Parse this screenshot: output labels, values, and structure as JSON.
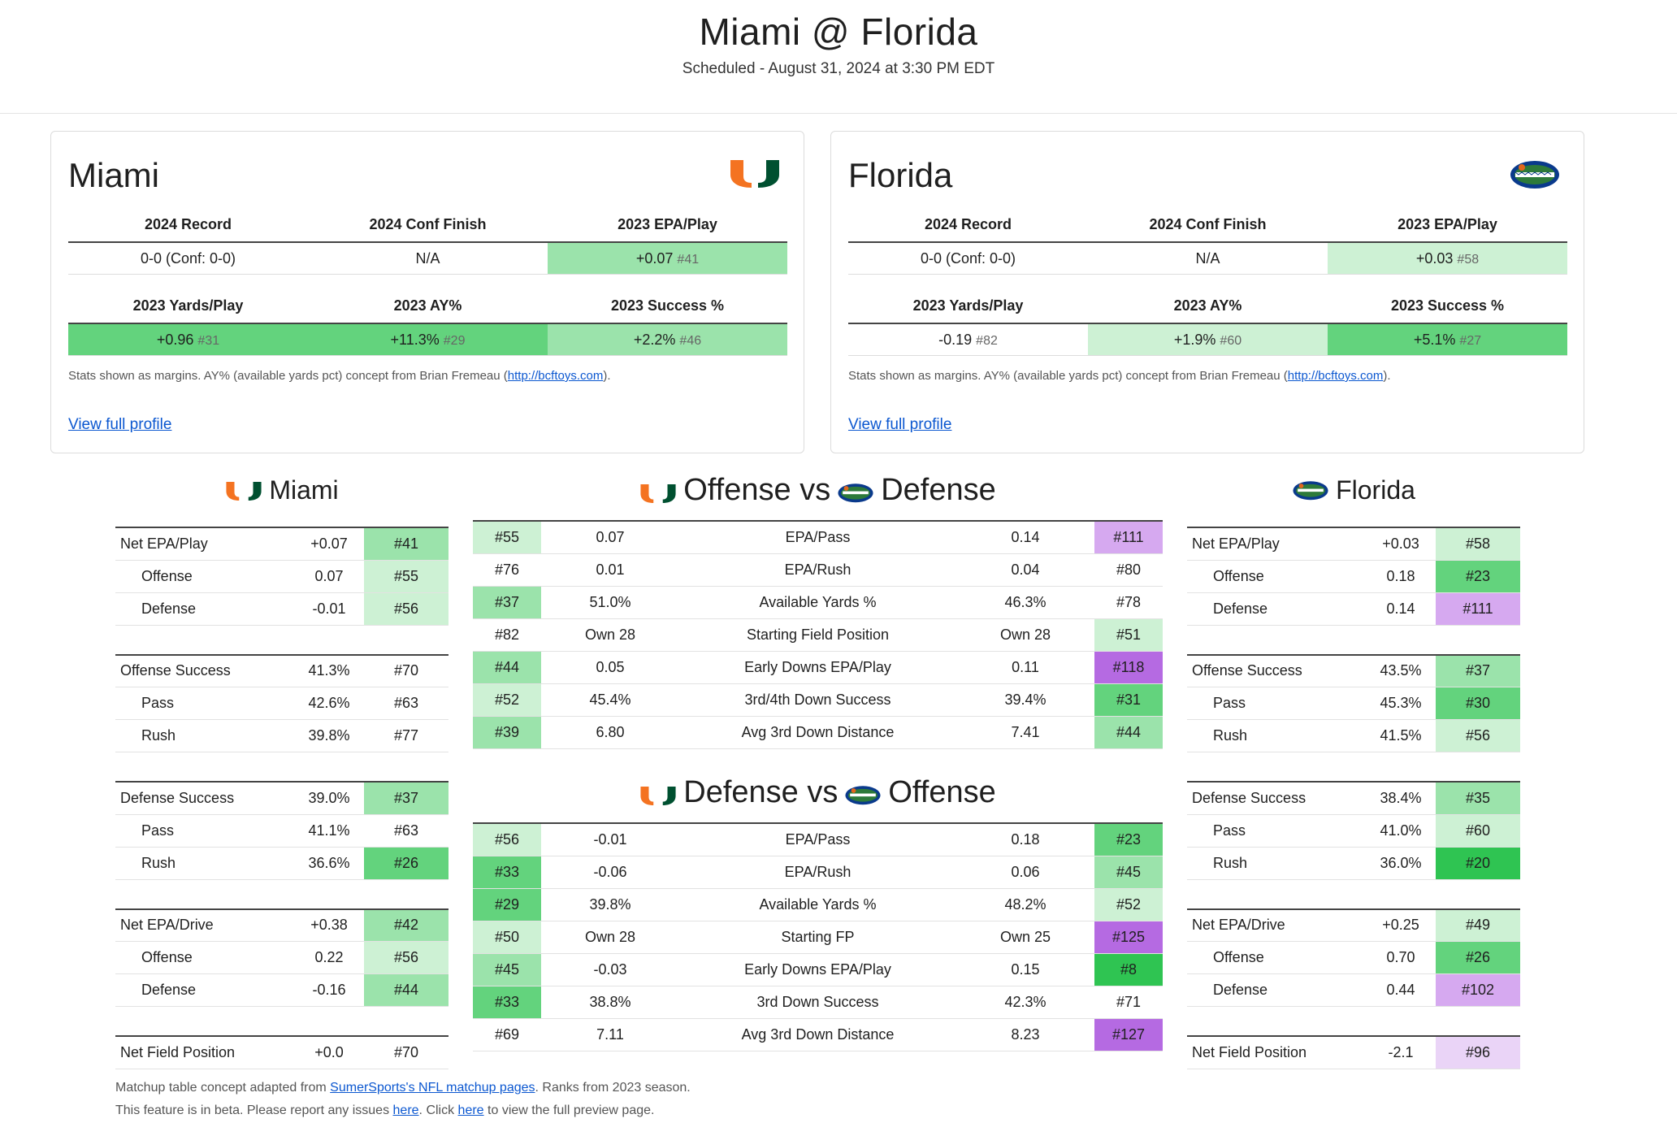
{
  "header": {
    "title": "Miami @ Florida",
    "subtitle": "Scheduled - August 31, 2024 at 3:30 PM EDT"
  },
  "colors": {
    "green_dark": "#2fc452",
    "green_mid": "#63d37d",
    "green_light": "#9be3ab",
    "green_pale": "#cdf1d4",
    "purple_dark": "#b56ae2",
    "purple_mid": "#d6a9f0",
    "purple_pale": "#ead4f7",
    "miami_orange": "#f47321",
    "miami_green": "#005030",
    "gator_blue": "#0a3a8c",
    "gator_orange": "#e2661b"
  },
  "cards": [
    {
      "team": "Miami",
      "logo": "miami-u-logo",
      "labels1": [
        "2024 Record",
        "2024 Conf Finish",
        "2023 EPA/Play"
      ],
      "record": "0-0 (Conf: 0-0)",
      "conf_finish": "N/A",
      "epa": "+0.07",
      "epa_rank": "#41",
      "labels2": [
        "2023 Yards/Play",
        "2023 AY%",
        "2023 Success %"
      ],
      "ypp": "+0.96",
      "ypp_rank": "#31",
      "ay": "+11.3%",
      "ay_rank": "#29",
      "succ": "+2.2%",
      "succ_rank": "#46",
      "note_prefix": "Stats shown as margins. AY% (available yards pct) concept from Brian Fremeau (",
      "note_link": "http://bcftoys.com",
      "note_suffix": ").",
      "profile_link": "View full profile"
    },
    {
      "team": "Florida",
      "logo": "gator-logo",
      "labels1": [
        "2024 Record",
        "2024 Conf Finish",
        "2023 EPA/Play"
      ],
      "record": "0-0 (Conf: 0-0)",
      "conf_finish": "N/A",
      "epa": "+0.03",
      "epa_rank": "#58",
      "labels2": [
        "2023 Yards/Play",
        "2023 AY%",
        "2023 Success %"
      ],
      "ypp": "-0.19",
      "ypp_rank": "#82",
      "ay": "+1.9%",
      "ay_rank": "#60",
      "succ": "+5.1%",
      "succ_rank": "#27",
      "note_prefix": "Stats shown as margins. AY% (available yards pct) concept from Brian Fremeau (",
      "note_link": "http://bcftoys.com",
      "note_suffix": ").",
      "profile_link": "View full profile"
    }
  ],
  "side_left": {
    "title": "Miami",
    "groups": [
      [
        [
          "Net EPA/Play",
          "+0.07",
          "#41"
        ],
        [
          "Offense",
          "0.07",
          "#55"
        ],
        [
          "Defense",
          "-0.01",
          "#56"
        ]
      ],
      [
        [
          "Offense Success",
          "41.3%",
          "#70"
        ],
        [
          "Pass",
          "42.6%",
          "#63"
        ],
        [
          "Rush",
          "39.8%",
          "#77"
        ]
      ],
      [
        [
          "Defense Success",
          "39.0%",
          "#37"
        ],
        [
          "Pass",
          "41.1%",
          "#63"
        ],
        [
          "Rush",
          "36.6%",
          "#26"
        ]
      ],
      [
        [
          "Net EPA/Drive",
          "+0.38",
          "#42"
        ],
        [
          "Offense",
          "0.22",
          "#56"
        ],
        [
          "Defense",
          "-0.16",
          "#44"
        ]
      ],
      [
        [
          "Net Field Position",
          "+0.0",
          "#70"
        ]
      ]
    ]
  },
  "side_right": {
    "title": "Florida",
    "groups": [
      [
        [
          "Net EPA/Play",
          "+0.03",
          "#58"
        ],
        [
          "Offense",
          "0.18",
          "#23"
        ],
        [
          "Defense",
          "0.14",
          "#111"
        ]
      ],
      [
        [
          "Offense Success",
          "43.5%",
          "#37"
        ],
        [
          "Pass",
          "45.3%",
          "#30"
        ],
        [
          "Rush",
          "41.5%",
          "#56"
        ]
      ],
      [
        [
          "Defense Success",
          "38.4%",
          "#35"
        ],
        [
          "Pass",
          "41.0%",
          "#60"
        ],
        [
          "Rush",
          "36.0%",
          "#20"
        ]
      ],
      [
        [
          "Net EPA/Drive",
          "+0.25",
          "#49"
        ],
        [
          "Offense",
          "0.70",
          "#26"
        ],
        [
          "Defense",
          "0.44",
          "#102"
        ]
      ],
      [
        [
          "Net Field Position",
          "-2.1",
          "#96"
        ]
      ]
    ]
  },
  "offense_vs": {
    "title_a": "Offense vs",
    "title_b": "Defense",
    "rows": [
      [
        "#55",
        "0.07",
        "EPA/Pass",
        "0.14",
        "#111"
      ],
      [
        "#76",
        "0.01",
        "EPA/Rush",
        "0.04",
        "#80"
      ],
      [
        "#37",
        "51.0%",
        "Available Yards %",
        "46.3%",
        "#78"
      ],
      [
        "#82",
        "Own 28",
        "Starting Field Position",
        "Own 28",
        "#51"
      ],
      [
        "#44",
        "0.05",
        "Early Downs EPA/Play",
        "0.11",
        "#118"
      ],
      [
        "#52",
        "45.4%",
        "3rd/4th Down Success",
        "39.4%",
        "#31"
      ],
      [
        "#39",
        "6.80",
        "Avg 3rd Down Distance",
        "7.41",
        "#44"
      ]
    ]
  },
  "defense_vs": {
    "title_a": "Defense vs",
    "title_b": "Offense",
    "rows": [
      [
        "#56",
        "-0.01",
        "EPA/Pass",
        "0.18",
        "#23"
      ],
      [
        "#33",
        "-0.06",
        "EPA/Rush",
        "0.06",
        "#45"
      ],
      [
        "#29",
        "39.8%",
        "Available Yards %",
        "48.2%",
        "#52"
      ],
      [
        "#50",
        "Own 28",
        "Starting FP",
        "Own 25",
        "#125"
      ],
      [
        "#45",
        "-0.03",
        "Early Downs EPA/Play",
        "0.15",
        "#8"
      ],
      [
        "#33",
        "38.8%",
        "3rd Down Success",
        "42.3%",
        "#71"
      ],
      [
        "#69",
        "7.11",
        "Avg 3rd Down Distance",
        "8.23",
        "#127"
      ]
    ]
  },
  "footer": {
    "line1_prefix": "Matchup table concept adapted from ",
    "line1_link": "SumerSports's NFL matchup pages",
    "line1_suffix": ". Ranks from 2023 season.",
    "line2_prefix": "This feature is in beta. Please report any issues ",
    "line2_link1": "here",
    "line2_mid": ". Click ",
    "line2_link2": "here",
    "line2_suffix": " to view the full preview page."
  }
}
